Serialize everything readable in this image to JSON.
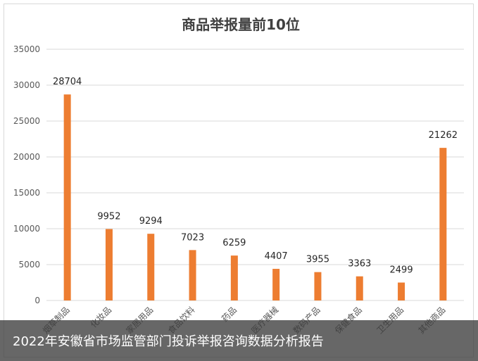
{
  "caption": "2022年安徽省市场监管部门投诉举报咨询数据分析报告",
  "chart_data": {
    "type": "bar",
    "title": "商品举报量前10位",
    "xlabel": "",
    "ylabel": "",
    "ylim": [
      0,
      35000
    ],
    "yticks": [
      0,
      5000,
      10000,
      15000,
      20000,
      25000,
      30000,
      35000
    ],
    "grid": true,
    "legend": "none",
    "categories": [
      "烟草制品",
      "化妆品",
      "家居用品",
      "食品饮料",
      "药品",
      "医疗器械",
      "数码产品",
      "保健食品",
      "卫生用品",
      "其他商品"
    ],
    "values": [
      28704,
      9952,
      9294,
      7023,
      6259,
      4407,
      3955,
      3363,
      2499,
      21262
    ],
    "data_labels": [
      "28704",
      "9952",
      "9294",
      "7023",
      "6259",
      "4407",
      "3955",
      "3363",
      "2499",
      "21262"
    ],
    "bar_color": "#ED7D31"
  }
}
